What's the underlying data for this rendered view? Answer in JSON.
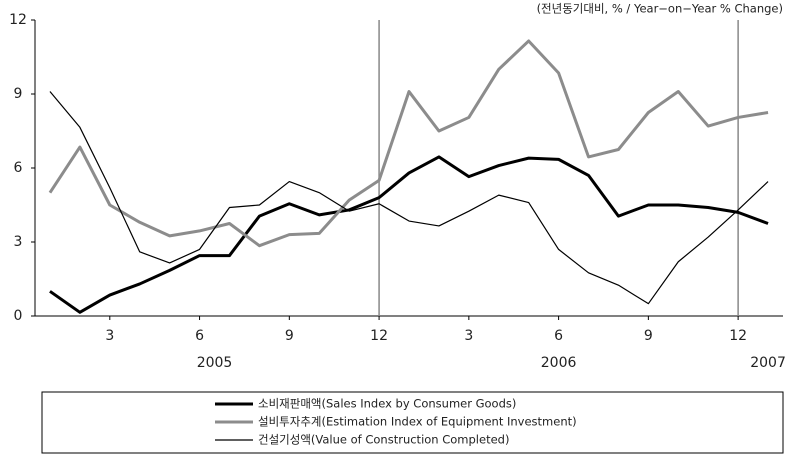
{
  "chart_data": {
    "type": "line",
    "note": "(전년동기대비, % / Year−on−Year % Change)",
    "x": [
      1,
      2,
      3,
      4,
      5,
      6,
      7,
      8,
      9,
      10,
      11,
      12,
      13,
      14,
      15,
      16,
      17,
      18,
      19,
      20,
      21,
      22,
      23,
      24,
      25
    ],
    "categories": [
      null,
      null,
      "3",
      null,
      null,
      "6",
      null,
      null,
      "9",
      null,
      null,
      "12",
      null,
      null,
      "3",
      null,
      null,
      "6",
      null,
      null,
      "9",
      null,
      null,
      "12",
      null
    ],
    "x_groups": [
      {
        "label": "2005",
        "x": 6.5
      },
      {
        "label": "2006",
        "x": 18
      },
      {
        "label": "2007",
        "x": 25
      }
    ],
    "vlines": [
      12,
      24
    ],
    "xlim": [
      0.5,
      25.5
    ],
    "ylim": [
      0,
      12
    ],
    "yticks": [
      0,
      3,
      6,
      9,
      12
    ],
    "series": [
      {
        "name": "소비재판매액(Sales Index by Consumer Goods)",
        "color": "#000000",
        "width": 3,
        "values": [
          1.0,
          0.15,
          0.85,
          1.3,
          1.85,
          2.45,
          2.45,
          4.05,
          4.55,
          4.1,
          4.3,
          4.8,
          5.8,
          6.45,
          5.65,
          6.1,
          6.4,
          6.35,
          5.7,
          4.05,
          4.5,
          4.5,
          4.4,
          4.2,
          3.75
        ]
      },
      {
        "name": "설비투자추계(Estimation Index of Equipment Investment)",
        "color": "#8c8c8c",
        "width": 3,
        "values": [
          5.0,
          6.85,
          4.5,
          3.8,
          3.25,
          3.45,
          3.75,
          2.85,
          3.3,
          3.35,
          4.7,
          5.5,
          9.1,
          7.5,
          8.05,
          10.0,
          11.15,
          9.85,
          6.45,
          6.75,
          8.25,
          9.1,
          7.7,
          8.05,
          8.25
        ]
      },
      {
        "name": "건설기성액(Value of Construction Completed)",
        "color": "#000000",
        "width": 1.2,
        "values": [
          9.1,
          7.65,
          5.2,
          2.6,
          2.15,
          2.7,
          4.4,
          4.5,
          5.45,
          5.0,
          4.25,
          4.55,
          3.85,
          3.65,
          4.25,
          4.9,
          4.6,
          2.7,
          1.75,
          1.25,
          0.5,
          2.2,
          3.2,
          4.3,
          5.45
        ]
      }
    ]
  }
}
